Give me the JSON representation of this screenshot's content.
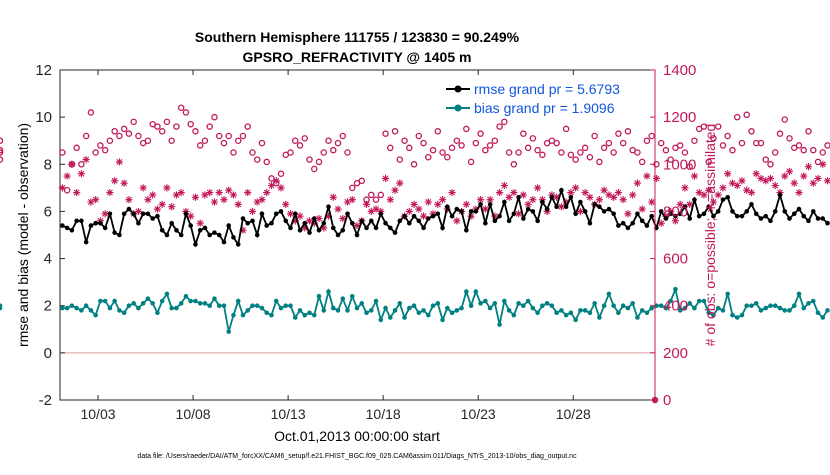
{
  "chart_data": {
    "type": "line",
    "title": "Southern Hemisphere 111755 / 123830 = 90.249%",
    "subtitle": "GPSRO_REFRACTIVITY @ 1405 m",
    "xlabel": "Oct.01,2013 00:00:00 start",
    "ylabel": "rmse and bias (model - observation)",
    "y2label": "# of obs: o=possible; ∗=assimilated",
    "footer": "data file: /Users/raeder/DAI/ATM_forcXX/CAM6_setup/f.e21.FHIST_BGC.f09_025.CAM6assim.011/Diags_NTrS_2013-10/obs_diag_output.nc",
    "xlim": [
      1,
      32.3
    ],
    "ylim": [
      -2,
      12
    ],
    "y2lim": [
      0,
      1400
    ],
    "x_ticks": [
      {
        "value": 3,
        "label": "10/03"
      },
      {
        "value": 8,
        "label": "10/08"
      },
      {
        "value": 13,
        "label": "10/13"
      },
      {
        "value": 18,
        "label": "10/18"
      },
      {
        "value": 23,
        "label": "10/23"
      },
      {
        "value": 28,
        "label": "10/28"
      }
    ],
    "y_ticks": [
      -2,
      0,
      2,
      4,
      6,
      8,
      10,
      12
    ],
    "y2_ticks": [
      0,
      200,
      400,
      600,
      800,
      1000,
      1200,
      1400
    ],
    "legend_position": "top-right",
    "colors": {
      "rmse": "#000000",
      "bias": "#008080",
      "obs": "#c2185b",
      "zero_line": "#e0b0b0"
    },
    "series": [
      {
        "name": "rmse grand pr = 5.6793",
        "color": "#000000",
        "values": [
          5.4,
          5.3,
          5.2,
          5.6,
          5.6,
          4.7,
          5.4,
          5.5,
          5.5,
          5.3,
          5.9,
          5.1,
          5.0,
          5.9,
          6.1,
          5.9,
          5.5,
          5.9,
          5.9,
          5.7,
          5.8,
          5.2,
          5.0,
          5.5,
          5.2,
          5.0,
          5.9,
          5.4,
          4.6,
          5.2,
          5.3,
          5.0,
          5.1,
          5.0,
          4.7,
          5.4,
          4.9,
          4.6,
          5.7,
          5.5,
          5.6,
          5.0,
          5.9,
          5.4,
          5.5,
          5.9,
          6.0,
          5.6,
          5.3,
          5.9,
          5.2,
          5.5,
          5.1,
          5.7,
          5.2,
          5.5,
          6.2,
          5.3,
          5.0,
          5.2,
          5.9,
          5.5,
          5.0,
          5.6,
          5.3,
          5.6,
          5.3,
          5.9,
          5.5,
          5.3,
          5.1,
          5.6,
          5.8,
          5.5,
          5.8,
          5.6,
          5.3,
          5.7,
          5.8,
          5.9,
          5.3,
          6.2,
          5.8,
          6.1,
          6.0,
          5.2,
          6.0,
          6.0,
          6.3,
          5.5,
          6.3,
          5.6,
          5.8,
          6.4,
          5.6,
          5.9,
          6.6,
          5.7,
          6.1,
          6.0,
          5.6,
          6.4,
          6.1,
          6.6,
          6.2,
          6.9,
          6.2,
          6.6,
          5.9,
          6.4,
          6.0,
          5.5,
          6.3,
          6.2,
          6.0,
          6.1,
          5.9,
          5.4,
          5.5,
          5.3,
          5.5,
          5.9,
          5.6,
          5.4,
          5.8,
          5.3,
          6.0,
          5.7,
          5.9,
          5.8,
          5.9,
          6.2,
          5.7,
          6.5,
          5.8,
          5.9,
          6.2,
          5.8,
          6.0,
          6.5,
          6.6,
          6.0,
          5.8,
          5.8,
          6.0,
          6.3,
          5.9,
          5.7,
          5.8,
          5.6,
          6.0,
          6.7,
          6.0,
          5.7,
          5.9,
          6.1,
          5.8,
          5.6,
          6.0,
          5.7,
          5.7,
          5.5
        ]
      },
      {
        "name": "bias grand pr = 1.9096",
        "color": "#008080",
        "values": [
          1.9,
          1.9,
          2.0,
          1.9,
          1.8,
          2.0,
          1.8,
          1.6,
          2.2,
          2.2,
          1.9,
          2.2,
          1.8,
          1.7,
          2.0,
          2.1,
          1.9,
          2.1,
          2.3,
          2.1,
          1.7,
          2.2,
          2.5,
          1.9,
          1.9,
          2.1,
          2.4,
          2.2,
          2.2,
          2.1,
          2.1,
          2.0,
          2.3,
          2.0,
          2.0,
          0.9,
          1.6,
          2.2,
          1.6,
          1.8,
          2.0,
          2.0,
          1.9,
          1.7,
          1.6,
          2.2,
          1.9,
          2.0,
          2.0,
          1.5,
          1.8,
          1.6,
          1.7,
          1.6,
          2.4,
          1.8,
          2.6,
          1.9,
          1.8,
          2.3,
          1.8,
          2.4,
          1.9,
          2.1,
          1.7,
          1.8,
          2.2,
          1.4,
          1.9,
          1.5,
          1.8,
          2.1,
          1.5,
          1.9,
          2.0,
          1.7,
          1.8,
          1.6,
          2.0,
          2.1,
          1.4,
          1.9,
          1.7,
          1.8,
          1.9,
          2.6,
          2.0,
          2.6,
          2.1,
          2.2,
          1.9,
          2.1,
          1.2,
          2.2,
          1.8,
          1.6,
          2.1,
          2.0,
          2.2,
          1.9,
          1.7,
          2.0,
          2.1,
          2.0,
          1.7,
          1.8,
          1.6,
          1.7,
          1.4,
          1.8,
          1.8,
          1.7,
          2.1,
          1.5,
          2.0,
          2.5,
          2.0,
          1.7,
          2.0,
          1.9,
          2.1,
          1.5,
          1.8,
          1.7,
          1.9,
          2.0,
          2.0,
          1.9,
          2.2,
          2.7,
          1.8,
          1.9,
          2.1,
          1.9,
          2.2,
          2.2,
          1.7,
          1.6,
          1.9,
          1.8,
          2.5,
          1.6,
          1.5,
          1.6,
          2.0,
          2.0,
          2.1,
          1.8,
          1.9,
          2.0,
          2.0,
          1.9,
          1.8,
          1.8,
          2.0,
          2.5,
          1.9,
          2.1,
          2.2,
          1.7,
          1.5,
          1.8,
          1.9,
          2.0
        ]
      },
      {
        "name": "possible",
        "color": "#c2185b",
        "marker": "o",
        "values": [
          1050,
          890,
          1000,
          1070,
          1000,
          1120,
          1220,
          1050,
          1080,
          1060,
          1100,
          1140,
          1120,
          1150,
          1130,
          1180,
          1120,
          1090,
          1100,
          1170,
          1160,
          1140,
          1180,
          1100,
          1160,
          1240,
          1220,
          1170,
          1140,
          1080,
          1100,
          1160,
          1200,
          1120,
          1090,
          1120,
          1050,
          1100,
          1120,
          1160,
          1050,
          1020,
          1090,
          1010,
          940,
          920,
          960,
          1040,
          1050,
          1100,
          1080,
          1110,
          1020,
          980,
          1010,
          1050,
          1100,
          1060,
          1090,
          1120,
          1050,
          900,
          920,
          930,
          850,
          870,
          850,
          870,
          1130,
          1070,
          1140,
          1020,
          1100,
          1070,
          1000,
          1120,
          1090,
          1030,
          1060,
          1140,
          1050,
          1030,
          1070,
          1100,
          1080,
          1150,
          1010,
          1090,
          1130,
          1060,
          1080,
          1100,
          1160,
          1180,
          1050,
          1000,
          1050,
          1130,
          1070,
          1110,
          1060,
          1040,
          1090,
          1100,
          1090,
          1050,
          1150,
          1040,
          1020,
          1050,
          1070,
          1030,
          1120,
          1010,
          1070,
          1090,
          1050,
          1130,
          1090,
          1140,
          1060,
          1050,
          1010,
          1100,
          1120,
          1000,
          1090,
          1060,
          1020,
          1070,
          1080,
          1050,
          990,
          1100,
          1150,
          1160,
          1010,
          1110,
          1160,
          1080,
          1120,
          1060,
          1200,
          1090,
          1210,
          1140,
          1090,
          1090,
          1020,
          1000,
          1050,
          1130,
          1190,
          1110,
          1070,
          1080,
          1060,
          1140,
          1060,
          1010,
          1050,
          1080,
          1100,
          1050,
          1020,
          1060,
          1050
        ]
      },
      {
        "name": "assimilated",
        "color": "#c2185b",
        "marker": "*",
        "values": [
          900,
          950,
          1000,
          880,
          960,
          1020,
          840,
          850,
          760,
          790,
          880,
          930,
          1010,
          920,
          850,
          790,
          800,
          900,
          850,
          870,
          810,
          830,
          900,
          820,
          870,
          880,
          800,
          780,
          860,
          750,
          870,
          880,
          840,
          880,
          850,
          890,
          870,
          830,
          720,
          880,
          800,
          840,
          850,
          880,
          910,
          930,
          900,
          830,
          790,
          760,
          780,
          730,
          760,
          750,
          770,
          730,
          780,
          860,
          810,
          770,
          840,
          850,
          740,
          760,
          830,
          800,
          810,
          800,
          940,
          850,
          890,
          920,
          780,
          800,
          830,
          810,
          780,
          840,
          790,
          830,
          850,
          810,
          880,
          760,
          800,
          830,
          780,
          810,
          850,
          810,
          850,
          780,
          880,
          910,
          860,
          880,
          790,
          870,
          830,
          850,
          900,
          850,
          800,
          870,
          860,
          820,
          840,
          880,
          900,
          800,
          880,
          860,
          830,
          850,
          890,
          870,
          860,
          880,
          850,
          790,
          870,
          920,
          810,
          950,
          840,
          940,
          750,
          780,
          800,
          760,
          830,
          900,
          830,
          950,
          880,
          870,
          890,
          840,
          870,
          900,
          960,
          920,
          910,
          930,
          890,
          880,
          960,
          940,
          930,
          940,
          910,
          880,
          950,
          970,
          920,
          880,
          950,
          990,
          920,
          940,
          1000,
          930,
          980,
          1010,
          950,
          940,
          980,
          940,
          960,
          940
        ]
      }
    ]
  }
}
